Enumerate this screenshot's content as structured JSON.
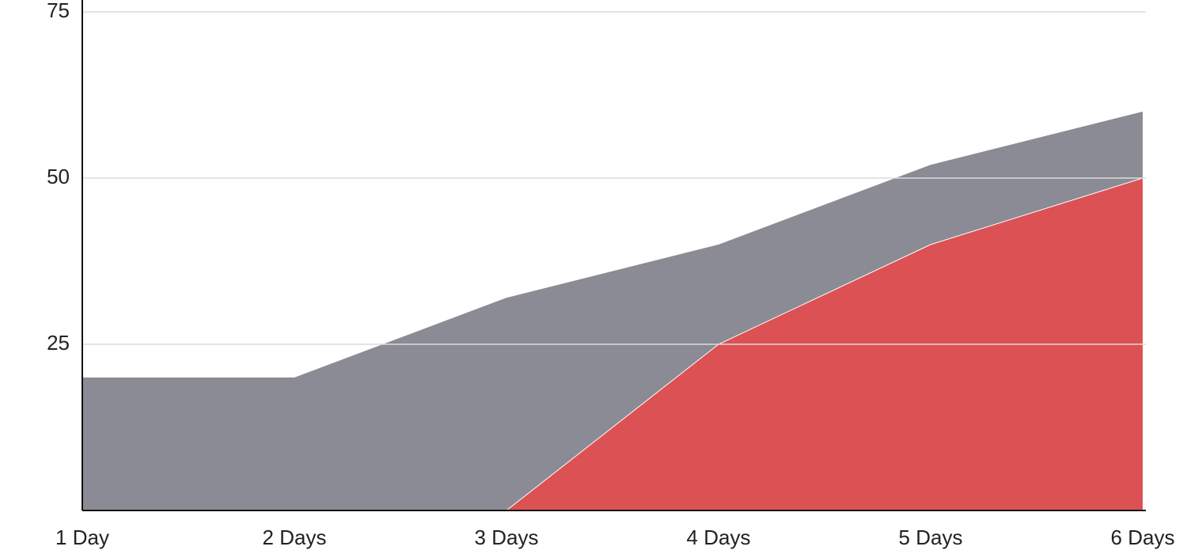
{
  "chart_data": {
    "type": "area",
    "categories": [
      "1 Day",
      "2 Days",
      "3 Days",
      "4 Days",
      "5 Days",
      "6 Days"
    ],
    "series": [
      {
        "color": "#8a8b94",
        "values": [
          20,
          20,
          32,
          40,
          52,
          60
        ]
      },
      {
        "color": "#dc5154",
        "values": [
          null,
          null,
          0,
          25,
          40,
          50
        ]
      }
    ],
    "ylim": [
      0,
      75
    ],
    "yticks": [
      25,
      50,
      75
    ],
    "grid": true
  }
}
